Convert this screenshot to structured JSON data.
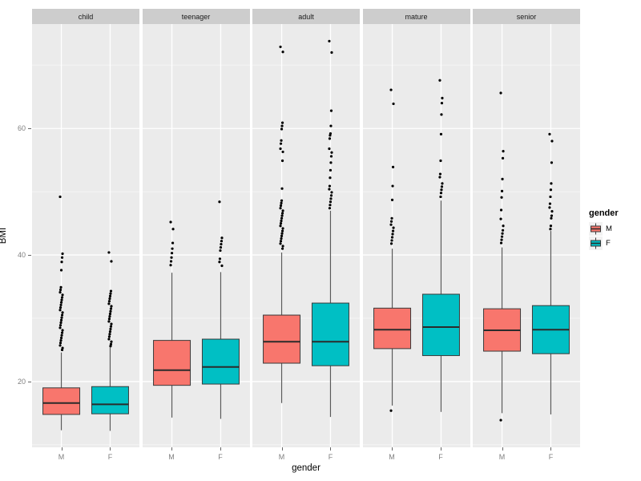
{
  "y_axis": {
    "title": "BMI",
    "tick_labels": [
      "20",
      "40",
      "60"
    ],
    "tick_values": [
      20,
      40,
      60
    ],
    "minor_tick_values": [
      10,
      30,
      50,
      70
    ]
  },
  "x_axis": {
    "title": "gender",
    "categories": [
      "M",
      "F"
    ]
  },
  "legend": {
    "title": "gender",
    "items": [
      {
        "label": "M",
        "color": "#F8766D"
      },
      {
        "label": "F",
        "color": "#00BFC4"
      }
    ]
  },
  "style": {
    "panel_bg": "#EBEBEB",
    "strip_bg": "#CDCDCD",
    "grid_major": "#FFFFFF",
    "grid_minor": "#F5F5F5",
    "box_border": "#3A3A3A",
    "median_color": "#2B2B2B",
    "whisker_color": "#5A5A5A",
    "outlier_color": "#000000"
  },
  "chart_data": {
    "type": "boxplot",
    "title": "",
    "xlabel": "gender",
    "ylabel": "BMI",
    "ylim": [
      9.6,
      76.5
    ],
    "yticks": [
      20,
      40,
      60
    ],
    "grid": true,
    "legend_position": "right",
    "facets": [
      {
        "label": "child",
        "boxes": [
          {
            "gender": "M",
            "color": "#F8766D",
            "lower": 12.3,
            "q1": 14.8,
            "median": 16.6,
            "q3": 19.0,
            "upper": 24.6,
            "outliers": [
              49.2,
              40.2,
              39.6,
              38.9,
              37.6,
              34.9,
              34.5,
              34.1,
              33.7,
              33.3,
              32.9,
              32.5,
              32.1,
              31.7,
              31.3,
              30.9,
              30.5,
              30.1,
              29.7,
              29.3,
              28.9,
              28.5,
              28.1,
              27.7,
              27.3,
              26.9,
              26.5,
              26.1,
              25.7,
              25.3,
              25.0
            ]
          },
          {
            "gender": "F",
            "color": "#00BFC4",
            "lower": 12.2,
            "q1": 14.9,
            "median": 16.4,
            "q3": 19.2,
            "upper": 25.4,
            "outliers": [
              40.4,
              39.0,
              34.3,
              33.9,
              33.5,
              33.1,
              32.7,
              32.3,
              31.9,
              31.5,
              31.1,
              30.7,
              30.3,
              29.9,
              29.5,
              29.1,
              28.7,
              28.3,
              27.9,
              27.5,
              27.1,
              26.7,
              26.3,
              25.9,
              25.6
            ]
          }
        ]
      },
      {
        "label": "teenager",
        "boxes": [
          {
            "gender": "M",
            "color": "#F8766D",
            "lower": 14.3,
            "q1": 19.4,
            "median": 21.8,
            "q3": 26.5,
            "upper": 37.2,
            "outliers": [
              45.2,
              44.1,
              41.9,
              41.0,
              40.3,
              39.6,
              39.0,
              38.4
            ]
          },
          {
            "gender": "F",
            "color": "#00BFC4",
            "lower": 14.1,
            "q1": 19.6,
            "median": 22.3,
            "q3": 26.7,
            "upper": 37.3,
            "outliers": [
              48.4,
              42.7,
              42.2,
              41.7,
              41.2,
              40.7,
              39.4,
              38.9,
              38.3
            ]
          }
        ]
      },
      {
        "label": "adult",
        "boxes": [
          {
            "gender": "M",
            "color": "#F8766D",
            "lower": 16.6,
            "q1": 22.9,
            "median": 26.3,
            "q3": 30.5,
            "upper": 40.4,
            "outliers": [
              72.9,
              72.1,
              60.9,
              60.4,
              59.9,
              58.1,
              57.6,
              56.8,
              56.3,
              54.9,
              50.5,
              48.6,
              48.2,
              47.8,
              47.4,
              47.0,
              46.6,
              46.2,
              45.8,
              45.4,
              45.0,
              44.6,
              44.2,
              43.8,
              43.4,
              43.0,
              42.6,
              42.2,
              41.8,
              41.4,
              41.0
            ]
          },
          {
            "gender": "F",
            "color": "#00BFC4",
            "lower": 14.4,
            "q1": 22.5,
            "median": 26.3,
            "q3": 32.4,
            "upper": 47.0,
            "outliers": [
              73.8,
              72.0,
              62.8,
              60.4,
              59.2,
              58.9,
              58.4,
              56.8,
              56.2,
              55.6,
              54.6,
              53.4,
              52.2,
              50.9,
              50.4,
              49.9,
              49.4,
              48.9,
              48.4,
              47.9,
              47.4
            ]
          }
        ]
      },
      {
        "label": "mature",
        "boxes": [
          {
            "gender": "M",
            "color": "#F8766D",
            "lower": 16.2,
            "q1": 25.2,
            "median": 28.2,
            "q3": 31.6,
            "upper": 41.0,
            "outliers": [
              66.1,
              63.9,
              53.9,
              50.9,
              48.7,
              45.8,
              45.3,
              44.8,
              44.3,
              43.8,
              43.3,
              42.8,
              42.3,
              41.8,
              15.4
            ]
          },
          {
            "gender": "F",
            "color": "#00BFC4",
            "lower": 15.2,
            "q1": 24.1,
            "median": 28.6,
            "q3": 33.8,
            "upper": 48.6,
            "outliers": [
              67.6,
              64.8,
              64.0,
              62.2,
              59.1,
              54.9,
              52.8,
              52.3,
              51.3,
              50.8,
              50.3,
              49.8,
              49.2
            ]
          }
        ]
      },
      {
        "label": "senior",
        "boxes": [
          {
            "gender": "M",
            "color": "#F8766D",
            "lower": 15.0,
            "q1": 24.8,
            "median": 28.1,
            "q3": 31.5,
            "upper": 41.2,
            "outliers": [
              65.6,
              56.4,
              55.3,
              52.0,
              50.1,
              49.1,
              47.1,
              45.7,
              44.6,
              43.9,
              43.4,
              42.9,
              42.4,
              41.9,
              13.9
            ]
          },
          {
            "gender": "F",
            "color": "#00BFC4",
            "lower": 14.8,
            "q1": 24.4,
            "median": 28.2,
            "q3": 32.0,
            "upper": 43.8,
            "outliers": [
              59.1,
              58.0,
              54.6,
              51.3,
              50.3,
              49.2,
              48.1,
              47.5,
              46.9,
              46.2,
              45.8,
              44.6,
              44.1
            ]
          }
        ]
      }
    ]
  }
}
